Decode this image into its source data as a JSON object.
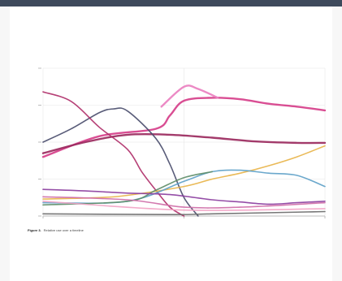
{
  "colors": {
    "frame": "#3e4a5c",
    "page": "#ffffff",
    "axis": "#bdbdbd",
    "grid": "#e6e6e6"
  },
  "caption": {
    "label": "Figure 3.",
    "text": "Relative use over a timeline"
  },
  "chart_data": {
    "type": "line",
    "title": "",
    "xlabel": "",
    "ylabel": "",
    "xlim": [
      0,
      1
    ],
    "ylim": [
      0,
      200
    ],
    "grid": true,
    "x_ticks": [
      0,
      0.5,
      1
    ],
    "y_ticks": [
      0,
      50,
      100,
      150,
      200
    ],
    "series": [
      {
        "name": "",
        "color": "#d63f8a",
        "points": [
          [
            0,
            80
          ],
          [
            0.2,
            108
          ],
          [
            0.4,
            118
          ],
          [
            0.45,
            136
          ],
          [
            0.5,
            156
          ],
          [
            0.6,
            160
          ],
          [
            0.7,
            158
          ],
          [
            0.8,
            152
          ],
          [
            0.9,
            148
          ],
          [
            1,
            143
          ]
        ]
      },
      {
        "name": "",
        "color": "#ea80c0",
        "points": [
          [
            0.42,
            148
          ],
          [
            0.5,
            175
          ],
          [
            0.55,
            172
          ],
          [
            0.62,
            160
          ]
        ]
      },
      {
        "name": "",
        "color": "#9b2a5e",
        "points": [
          [
            0,
            85
          ],
          [
            0.15,
            100
          ],
          [
            0.3,
            110
          ],
          [
            0.45,
            110
          ],
          [
            0.6,
            106
          ],
          [
            0.75,
            101
          ],
          [
            0.9,
            99
          ],
          [
            1,
            99
          ]
        ]
      },
      {
        "name": "",
        "color": "#4b4e6e",
        "points": [
          [
            0,
            100
          ],
          [
            0.1,
            118
          ],
          [
            0.2,
            140
          ],
          [
            0.25,
            145
          ],
          [
            0.3,
            142
          ],
          [
            0.4,
            105
          ],
          [
            0.45,
            70
          ],
          [
            0.5,
            25
          ],
          [
            0.55,
            0
          ]
        ]
      },
      {
        "name": "",
        "color": "#b0306a",
        "points": [
          [
            0,
            168
          ],
          [
            0.1,
            155
          ],
          [
            0.2,
            120
          ],
          [
            0.3,
            90
          ],
          [
            0.35,
            60
          ],
          [
            0.4,
            35
          ],
          [
            0.45,
            12
          ],
          [
            0.5,
            0
          ]
        ]
      },
      {
        "name": "",
        "color": "#e8b44a",
        "points": [
          [
            0,
            23
          ],
          [
            0.2,
            25
          ],
          [
            0.3,
            28
          ],
          [
            0.5,
            40
          ],
          [
            0.6,
            50
          ],
          [
            0.7,
            58
          ],
          [
            0.8,
            68
          ],
          [
            0.9,
            80
          ],
          [
            1,
            95
          ]
        ]
      },
      {
        "name": "",
        "color": "#5ea1c8",
        "points": [
          [
            0,
            18
          ],
          [
            0.3,
            20
          ],
          [
            0.5,
            47
          ],
          [
            0.6,
            60
          ],
          [
            0.7,
            62
          ],
          [
            0.8,
            58
          ],
          [
            0.9,
            55
          ],
          [
            1,
            40
          ]
        ]
      },
      {
        "name": "",
        "color": "#5f8e6a",
        "points": [
          [
            0,
            15
          ],
          [
            0.3,
            20
          ],
          [
            0.4,
            35
          ],
          [
            0.5,
            52
          ],
          [
            0.6,
            60
          ]
        ]
      },
      {
        "name": "",
        "color": "#8c3fa0",
        "points": [
          [
            0,
            36
          ],
          [
            0.15,
            34
          ],
          [
            0.3,
            31
          ],
          [
            0.45,
            29
          ],
          [
            0.6,
            22
          ],
          [
            0.7,
            19
          ],
          [
            0.8,
            16
          ],
          [
            0.9,
            18
          ],
          [
            1,
            20
          ]
        ]
      },
      {
        "name": "",
        "color": "#cf6ea8",
        "points": [
          [
            0,
            26
          ],
          [
            0.3,
            22
          ],
          [
            0.5,
            12
          ],
          [
            0.7,
            12
          ],
          [
            1,
            18
          ]
        ]
      },
      {
        "name": "",
        "color": "#f2a4c6",
        "points": [
          [
            0,
            20
          ],
          [
            0.5,
            8
          ],
          [
            1,
            10
          ]
        ]
      },
      {
        "name": "",
        "color": "#6b6b6b",
        "points": [
          [
            0,
            3
          ],
          [
            0.45,
            2
          ],
          [
            0.6,
            3
          ],
          [
            1,
            6
          ]
        ]
      }
    ]
  }
}
